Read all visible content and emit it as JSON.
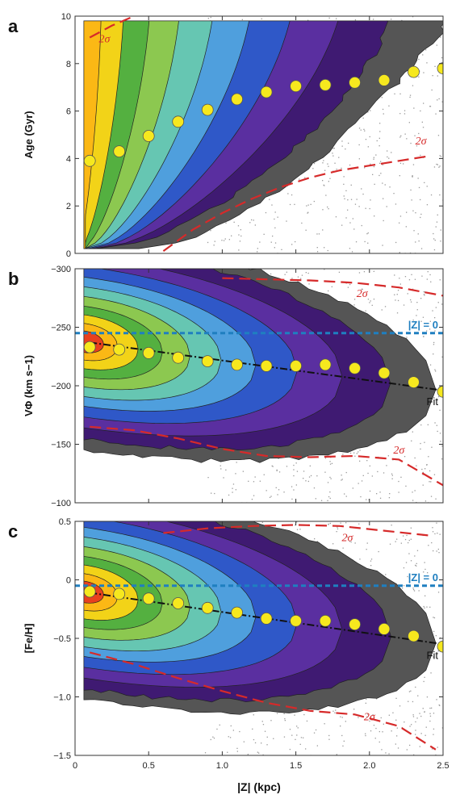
{
  "colors": {
    "levels": [
      "#555555",
      "#3f1a72",
      "#5a2fa0",
      "#2f58c8",
      "#4f9fdd",
      "#66c6b2",
      "#8cc850",
      "#54b040",
      "#f2d318",
      "#fbb815",
      "#e8401e"
    ],
    "sigma": "#d62a2a",
    "zero_line": "#1f7fc0",
    "points": "#f6e81e",
    "scatter": "#9a9a9a"
  },
  "chart_data": [
    {
      "type": "contour",
      "panel_label": "a",
      "xlabel": "",
      "ylabel": "Age (Gyr)",
      "xlim": [
        0,
        2.5
      ],
      "ylim": [
        0,
        10
      ],
      "y_inverted": false,
      "xticks": [
        0,
        0.5,
        1.0,
        1.5,
        2.0,
        2.5
      ],
      "yticks": [
        0,
        2,
        4,
        6,
        8,
        10
      ],
      "ytick_labels": [
        "0",
        "2",
        "4",
        "6",
        "8",
        "10"
      ],
      "median_points": {
        "x": [
          0.1,
          0.3,
          0.5,
          0.7,
          0.9,
          1.1,
          1.3,
          1.5,
          1.7,
          1.9,
          2.1,
          2.3,
          2.5
        ],
        "y": [
          3.9,
          4.3,
          4.95,
          5.55,
          6.05,
          6.5,
          6.8,
          7.05,
          7.1,
          7.2,
          7.3,
          7.65,
          7.8
        ]
      },
      "sigma_upper": {
        "x": [
          0.1,
          0.25,
          0.4
        ],
        "y": [
          9.1,
          9.6,
          10.0
        ]
      },
      "sigma_lower": {
        "x": [
          0.6,
          0.8,
          1.0,
          1.2,
          1.4,
          1.6,
          1.8,
          2.0,
          2.2,
          2.4
        ],
        "y": [
          0.1,
          1.0,
          1.7,
          2.3,
          2.8,
          3.2,
          3.5,
          3.7,
          3.9,
          4.1
        ]
      },
      "annotations": [
        {
          "text": "2σ",
          "x": 0.2,
          "y": 8.9
        },
        {
          "text": "2σ",
          "x": 2.35,
          "y": 4.6
        }
      ]
    },
    {
      "type": "contour",
      "panel_label": "b",
      "xlabel": "",
      "ylabel": "VΦ (km s−1)",
      "xlim": [
        0,
        2.5
      ],
      "ylim": [
        -300,
        -100
      ],
      "y_inverted": true,
      "xticks": [
        0,
        0.5,
        1.0,
        1.5,
        2.0,
        2.5
      ],
      "yticks": [
        -300,
        -250,
        -200,
        -150,
        -100
      ],
      "ytick_labels": [
        "−300",
        "−250",
        "−200",
        "−150",
        "−100"
      ],
      "median_points": {
        "x": [
          0.1,
          0.3,
          0.5,
          0.7,
          0.9,
          1.1,
          1.3,
          1.5,
          1.7,
          1.9,
          2.1,
          2.3,
          2.5
        ],
        "y": [
          -233,
          -231,
          -228,
          -224,
          -221,
          -218,
          -217,
          -217,
          -218,
          -215,
          -211,
          -203,
          -195
        ]
      },
      "fit_line": {
        "x": [
          0.1,
          2.5
        ],
        "y": [
          -237,
          -196
        ]
      },
      "zero_line": {
        "y": -245,
        "label": "|Z| = 0"
      },
      "fit_label": "Fit",
      "sigma_upper": {
        "x": [
          1.0,
          1.3,
          1.6,
          1.9,
          2.2,
          2.5
        ],
        "y": [
          -292,
          -291,
          -290,
          -288,
          -284,
          -277
        ]
      },
      "sigma_lower": {
        "x": [
          0.1,
          0.4,
          0.7,
          1.0,
          1.3,
          1.6,
          1.9,
          2.2,
          2.5
        ],
        "y": [
          -165,
          -162,
          -155,
          -146,
          -140,
          -139,
          -140,
          -137,
          -115
        ]
      },
      "annotations": [
        {
          "text": "2σ",
          "x": 1.95,
          "y": -276
        },
        {
          "text": "2σ",
          "x": 2.2,
          "y": -142
        }
      ]
    },
    {
      "type": "contour",
      "panel_label": "c",
      "xlabel": "|Z| (kpc)",
      "ylabel": "[Fe/H]",
      "xlim": [
        0,
        2.5
      ],
      "ylim": [
        -1.5,
        0.5
      ],
      "y_inverted": false,
      "xticks": [
        0,
        0.5,
        1.0,
        1.5,
        2.0,
        2.5
      ],
      "xtick_labels": [
        "0",
        "0.5",
        "1.0",
        "1.5",
        "2.0",
        "2.5"
      ],
      "yticks": [
        -1.5,
        -1.0,
        -0.5,
        0,
        0.5
      ],
      "ytick_labels": [
        "−1.5",
        "−1.0",
        "−0.5",
        "0",
        "0.5"
      ],
      "median_points": {
        "x": [
          0.1,
          0.3,
          0.5,
          0.7,
          0.9,
          1.1,
          1.3,
          1.5,
          1.7,
          1.9,
          2.1,
          2.3,
          2.5
        ],
        "y": [
          -0.1,
          -0.12,
          -0.16,
          -0.2,
          -0.24,
          -0.28,
          -0.33,
          -0.35,
          -0.35,
          -0.38,
          -0.42,
          -0.48,
          -0.57
        ]
      },
      "fit_line": {
        "x": [
          0.1,
          2.5
        ],
        "y": [
          -0.11,
          -0.55
        ]
      },
      "zero_line": {
        "y": -0.05,
        "label": "|Z| = 0"
      },
      "fit_label": "Fit",
      "sigma_upper": {
        "x": [
          0.6,
          0.9,
          1.2,
          1.5,
          1.8,
          2.1,
          2.4
        ],
        "y": [
          0.4,
          0.44,
          0.46,
          0.47,
          0.46,
          0.42,
          0.38
        ]
      },
      "sigma_lower": {
        "x": [
          0.1,
          0.4,
          0.7,
          1.0,
          1.3,
          1.6,
          1.9,
          2.2,
          2.45
        ],
        "y": [
          -0.62,
          -0.72,
          -0.84,
          -0.95,
          -1.05,
          -1.12,
          -1.15,
          -1.25,
          -1.45
        ]
      },
      "annotations": [
        {
          "text": "2σ",
          "x": 1.85,
          "y": 0.33
        },
        {
          "text": "2σ",
          "x": 2.0,
          "y": -1.2
        }
      ]
    }
  ]
}
